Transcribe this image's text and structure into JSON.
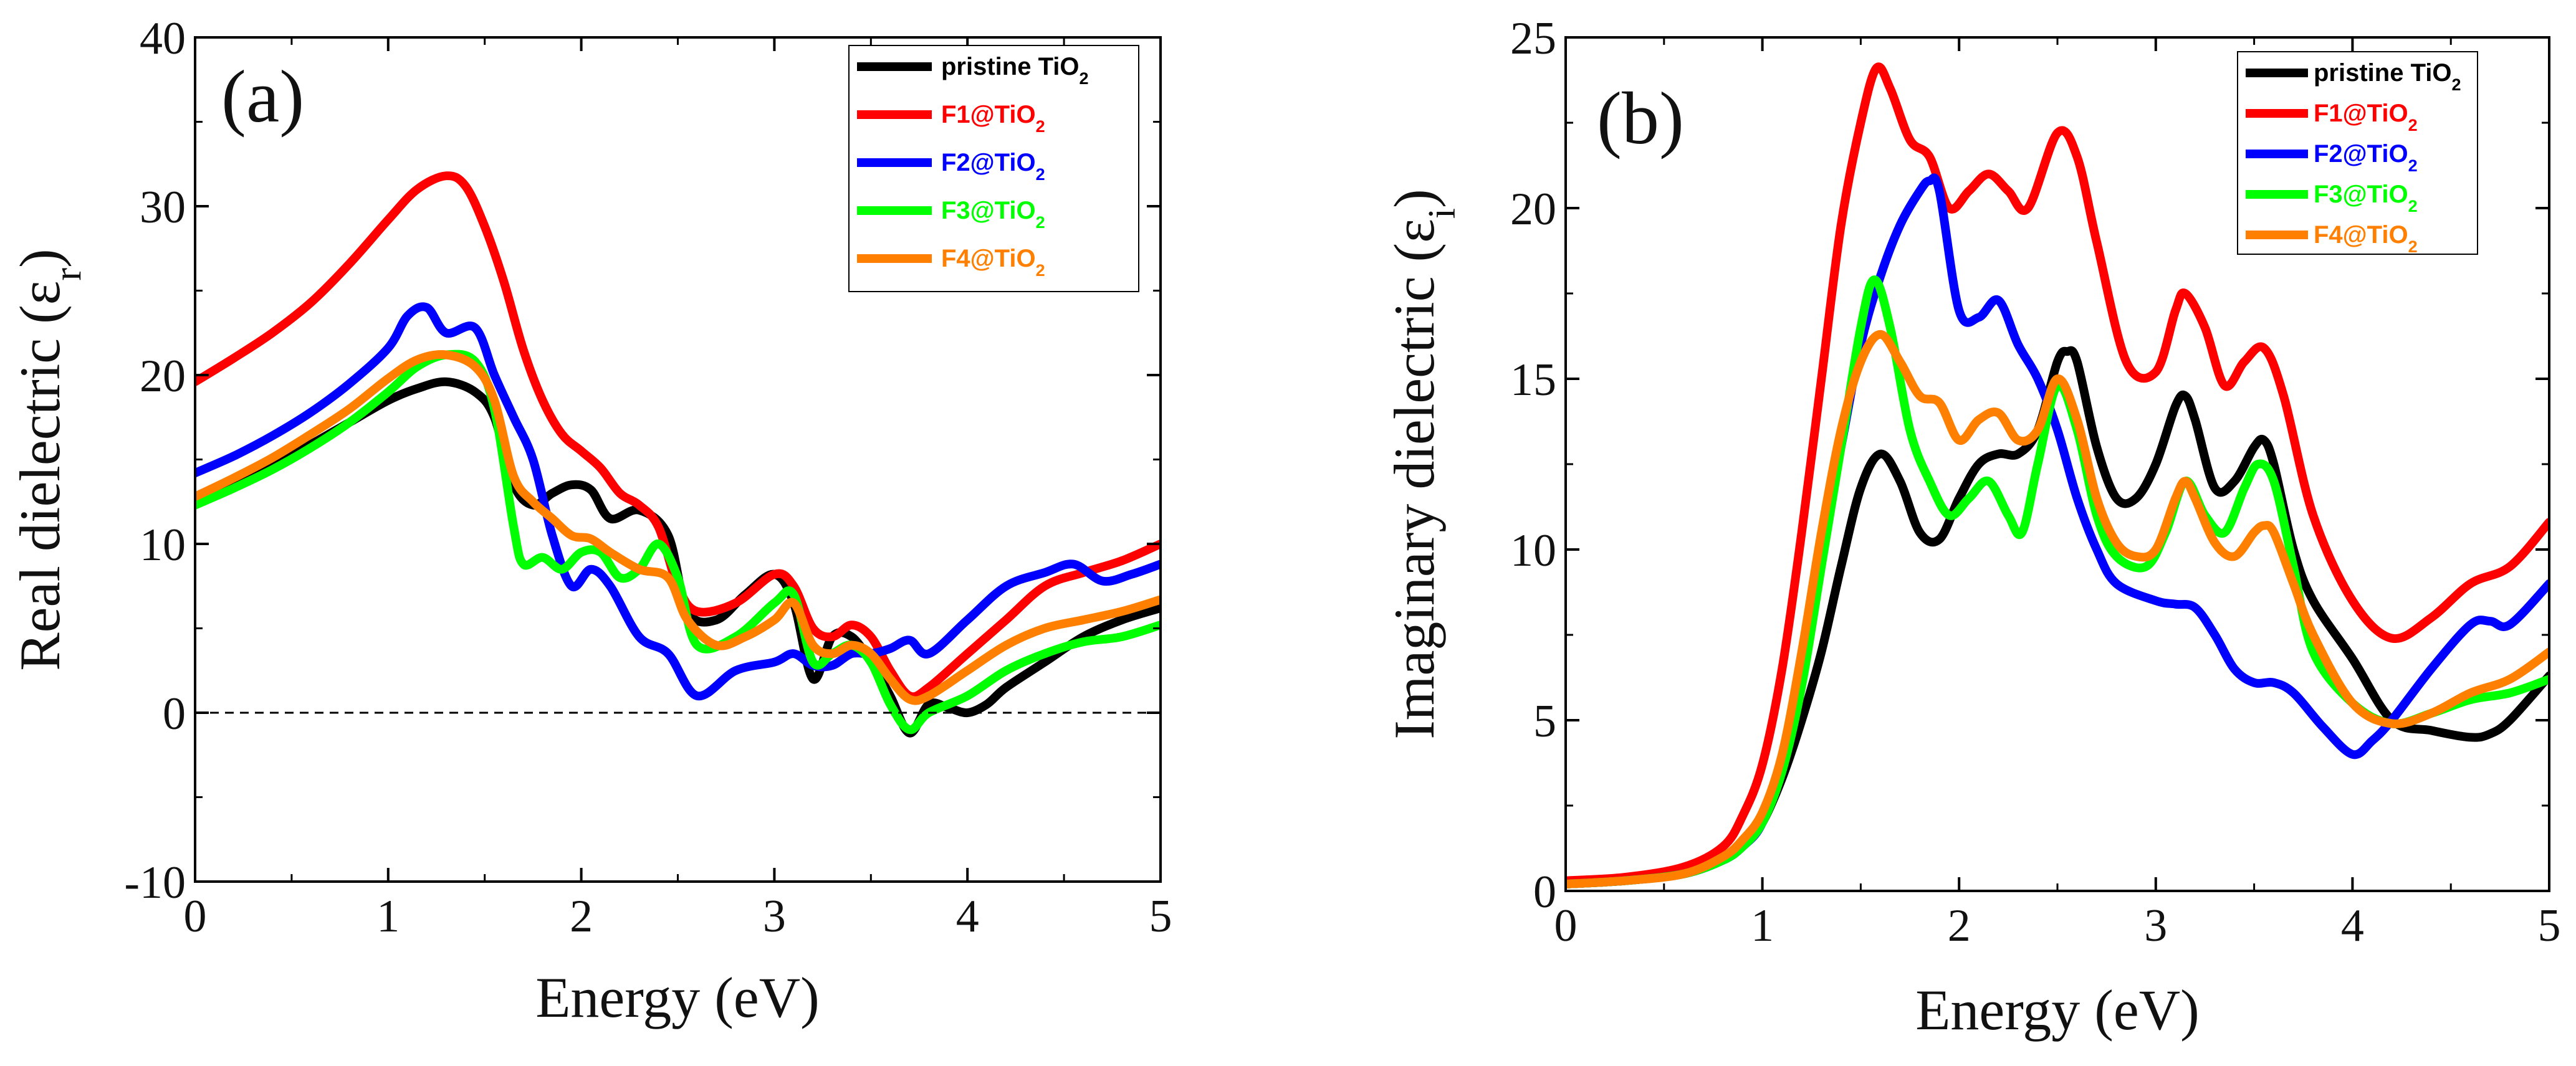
{
  "figure": {
    "panels": [
      {
        "panel_label": "(a)",
        "xlabel": "Energy (eV)",
        "ylabel_main": "Real dielectric (ε",
        "ylabel_sub": "r",
        "ylabel_close": ")",
        "legend_title_suffix": "2"
      },
      {
        "panel_label": "(b)",
        "xlabel": "Energy (eV)",
        "ylabel_main": "Imaginary dielectric (ε",
        "ylabel_sub": "i",
        "ylabel_close": ")",
        "legend_title_suffix": "2"
      }
    ]
  },
  "chart_data": [
    {
      "type": "line",
      "panel_label": "(a)",
      "xlabel": "Energy (eV)",
      "ylabel": "Real dielectric (εr)",
      "xlim": [
        0,
        5
      ],
      "ylim": [
        -10,
        40
      ],
      "xticks": [
        0,
        1,
        2,
        3,
        4,
        5
      ],
      "yticks": [
        -10,
        0,
        10,
        20,
        30,
        40
      ],
      "reference_line": {
        "y": 0,
        "style": "dashed"
      },
      "legend_position": "top-right",
      "series": [
        {
          "name": "pristine TiO",
          "sub": "2",
          "color": "#000000",
          "x": [
            0,
            0.2,
            0.4,
            0.6,
            0.8,
            1.0,
            1.15,
            1.3,
            1.45,
            1.55,
            1.65,
            1.75,
            1.85,
            1.95,
            2.05,
            2.15,
            2.3,
            2.45,
            2.55,
            2.7,
            2.85,
            3.0,
            3.1,
            3.2,
            3.3,
            3.4,
            3.5,
            3.6,
            3.7,
            3.8,
            3.9,
            4.0,
            4.1,
            4.2,
            4.4,
            4.6,
            4.8,
            5.0
          ],
          "y": [
            12.5,
            13.5,
            14.7,
            15.9,
            17.2,
            18.5,
            19.2,
            19.6,
            19.0,
            17.5,
            13.5,
            12.3,
            13.0,
            13.5,
            13.2,
            11.5,
            12.0,
            10.5,
            6.0,
            5.5,
            7.0,
            8.2,
            6.5,
            2.0,
            4.5,
            4.5,
            3.0,
            1.0,
            -1.2,
            0.5,
            0.3,
            0.0,
            0.5,
            1.5,
            3.0,
            4.5,
            5.5,
            6.2
          ]
        },
        {
          "name": "F1@TiO",
          "sub": "2",
          "color": "#ff0000",
          "x": [
            0,
            0.2,
            0.4,
            0.6,
            0.8,
            1.0,
            1.15,
            1.3,
            1.4,
            1.5,
            1.6,
            1.7,
            1.8,
            1.9,
            2.0,
            2.1,
            2.2,
            2.3,
            2.4,
            2.5,
            2.6,
            2.8,
            3.0,
            3.1,
            3.2,
            3.3,
            3.4,
            3.5,
            3.6,
            3.7,
            3.8,
            4.0,
            4.2,
            4.4,
            4.6,
            4.8,
            5.0
          ],
          "y": [
            19.6,
            21.0,
            22.5,
            24.3,
            26.6,
            29.2,
            31.0,
            31.8,
            31.2,
            28.8,
            25.5,
            21.5,
            18.5,
            16.5,
            15.5,
            14.5,
            13.0,
            12.3,
            11.0,
            7.5,
            6.0,
            6.5,
            8.2,
            7.5,
            5.0,
            4.5,
            5.2,
            4.5,
            2.5,
            1.0,
            1.5,
            3.5,
            5.5,
            7.5,
            8.3,
            9.0,
            10.0
          ]
        },
        {
          "name": "F2@TiO",
          "sub": "2",
          "color": "#0000ff",
          "x": [
            0,
            0.2,
            0.4,
            0.6,
            0.8,
            1.0,
            1.1,
            1.2,
            1.3,
            1.45,
            1.55,
            1.65,
            1.75,
            1.85,
            1.95,
            2.05,
            2.15,
            2.3,
            2.45,
            2.6,
            2.8,
            3.0,
            3.1,
            3.2,
            3.3,
            3.4,
            3.5,
            3.6,
            3.7,
            3.8,
            4.0,
            4.2,
            4.4,
            4.55,
            4.7,
            4.85,
            5.0
          ],
          "y": [
            14.2,
            15.2,
            16.4,
            17.8,
            19.5,
            21.6,
            23.5,
            24.0,
            22.5,
            22.8,
            20.0,
            17.5,
            15.0,
            10.5,
            7.5,
            8.5,
            7.5,
            4.5,
            3.5,
            1.0,
            2.5,
            3.0,
            3.5,
            2.8,
            2.8,
            3.5,
            3.5,
            3.8,
            4.3,
            3.5,
            5.5,
            7.5,
            8.3,
            8.8,
            7.8,
            8.2,
            8.8
          ]
        },
        {
          "name": "F3@TiO",
          "sub": "2",
          "color": "#00ff00",
          "x": [
            0,
            0.2,
            0.4,
            0.6,
            0.8,
            1.0,
            1.15,
            1.3,
            1.45,
            1.55,
            1.65,
            1.7,
            1.8,
            1.9,
            2.0,
            2.1,
            2.2,
            2.3,
            2.4,
            2.5,
            2.6,
            2.8,
            3.0,
            3.1,
            3.2,
            3.3,
            3.4,
            3.5,
            3.6,
            3.7,
            3.8,
            4.0,
            4.2,
            4.4,
            4.6,
            4.8,
            5.0
          ],
          "y": [
            12.3,
            13.3,
            14.4,
            15.7,
            17.2,
            19.0,
            20.5,
            21.2,
            20.8,
            18.0,
            11.0,
            8.8,
            9.2,
            8.5,
            9.5,
            9.5,
            8.0,
            8.5,
            10.0,
            8.0,
            4.0,
            4.5,
            6.5,
            7.0,
            3.0,
            3.5,
            4.0,
            3.0,
            0.5,
            -1.0,
            0.0,
            1.0,
            2.5,
            3.5,
            4.2,
            4.5,
            5.2
          ]
        },
        {
          "name": "F4@TiO",
          "sub": "2",
          "color": "#ff8000",
          "x": [
            0,
            0.2,
            0.4,
            0.6,
            0.8,
            1.0,
            1.15,
            1.3,
            1.45,
            1.55,
            1.65,
            1.75,
            1.85,
            1.95,
            2.05,
            2.15,
            2.3,
            2.45,
            2.55,
            2.7,
            2.85,
            3.0,
            3.1,
            3.2,
            3.3,
            3.4,
            3.5,
            3.6,
            3.7,
            3.8,
            4.0,
            4.2,
            4.4,
            4.6,
            4.8,
            5.0
          ],
          "y": [
            12.8,
            13.9,
            15.1,
            16.5,
            18.0,
            19.8,
            20.9,
            21.2,
            20.5,
            18.5,
            14.0,
            12.5,
            11.5,
            10.5,
            10.3,
            9.5,
            8.5,
            8.0,
            5.5,
            4.0,
            4.5,
            5.5,
            6.5,
            4.0,
            3.5,
            4.0,
            3.5,
            2.0,
            0.8,
            1.0,
            2.5,
            4.0,
            5.0,
            5.5,
            6.0,
            6.7
          ]
        }
      ]
    },
    {
      "type": "line",
      "panel_label": "(b)",
      "xlabel": "Energy (eV)",
      "ylabel": "Imaginary dielectric (εi)",
      "xlim": [
        0,
        5
      ],
      "ylim": [
        0,
        25
      ],
      "xticks": [
        0,
        1,
        2,
        3,
        4,
        5
      ],
      "yticks": [
        0,
        5,
        10,
        15,
        20,
        25
      ],
      "legend_position": "top-right",
      "series": [
        {
          "name": "pristine TiO",
          "sub": "2",
          "color": "#000000",
          "x": [
            0,
            0.3,
            0.6,
            0.8,
            0.9,
            1.0,
            1.1,
            1.2,
            1.3,
            1.4,
            1.5,
            1.6,
            1.7,
            1.8,
            1.9,
            2.0,
            2.1,
            2.2,
            2.3,
            2.4,
            2.5,
            2.55,
            2.6,
            2.7,
            2.8,
            2.9,
            3.0,
            3.1,
            3.15,
            3.2,
            3.3,
            3.4,
            3.5,
            3.55,
            3.6,
            3.7,
            3.8,
            4.0,
            4.2,
            4.4,
            4.6,
            4.7,
            4.8,
            5.0
          ],
          "y": [
            0.2,
            0.3,
            0.5,
            0.9,
            1.3,
            2.0,
            3.3,
            5.0,
            7.0,
            9.5,
            11.8,
            12.8,
            12.0,
            10.5,
            10.3,
            11.5,
            12.5,
            12.8,
            12.8,
            13.5,
            15.5,
            15.8,
            15.5,
            13.0,
            11.5,
            11.5,
            12.5,
            14.2,
            14.5,
            13.8,
            11.8,
            12.0,
            13.0,
            13.2,
            12.5,
            10.0,
            8.5,
            6.8,
            5.0,
            4.7,
            4.5,
            4.6,
            5.0,
            6.3
          ]
        },
        {
          "name": "F1@TiO",
          "sub": "2",
          "color": "#ff0000",
          "x": [
            0,
            0.3,
            0.6,
            0.8,
            0.9,
            1.0,
            1.1,
            1.2,
            1.3,
            1.4,
            1.5,
            1.58,
            1.65,
            1.75,
            1.85,
            1.95,
            2.05,
            2.15,
            2.25,
            2.35,
            2.5,
            2.6,
            2.7,
            2.85,
            3.0,
            3.1,
            3.15,
            3.25,
            3.35,
            3.45,
            3.55,
            3.65,
            3.8,
            4.0,
            4.2,
            4.4,
            4.6,
            4.8,
            5.0
          ],
          "y": [
            0.3,
            0.4,
            0.7,
            1.3,
            2.2,
            3.7,
            6.5,
            10.5,
            15.0,
            19.5,
            22.5,
            24.1,
            23.5,
            22.0,
            21.5,
            20.0,
            20.5,
            21.0,
            20.5,
            20.0,
            22.2,
            21.5,
            19.0,
            15.5,
            15.2,
            17.0,
            17.5,
            16.5,
            14.8,
            15.5,
            15.9,
            14.5,
            11.0,
            8.5,
            7.4,
            8.0,
            9.0,
            9.5,
            10.8
          ]
        },
        {
          "name": "F2@TiO",
          "sub": "2",
          "color": "#0000ff",
          "x": [
            0,
            0.3,
            0.6,
            0.8,
            0.9,
            1.0,
            1.1,
            1.2,
            1.3,
            1.4,
            1.5,
            1.6,
            1.7,
            1.8,
            1.85,
            1.9,
            2.0,
            2.1,
            2.2,
            2.3,
            2.4,
            2.5,
            2.6,
            2.7,
            2.8,
            3.0,
            3.1,
            3.2,
            3.3,
            3.4,
            3.5,
            3.6,
            3.7,
            3.85,
            4.0,
            4.1,
            4.2,
            4.4,
            4.6,
            4.7,
            4.8,
            5.0
          ],
          "y": [
            0.2,
            0.3,
            0.5,
            0.9,
            1.3,
            2.0,
            3.8,
            6.5,
            10.0,
            13.0,
            16.0,
            18.0,
            19.5,
            20.5,
            20.8,
            20.5,
            17.0,
            16.8,
            17.3,
            16.0,
            15.0,
            13.5,
            11.5,
            10.0,
            9.0,
            8.5,
            8.4,
            8.3,
            7.5,
            6.5,
            6.1,
            6.1,
            5.8,
            4.8,
            4.0,
            4.4,
            5.0,
            6.5,
            7.8,
            7.9,
            7.8,
            9.0
          ]
        },
        {
          "name": "F3@TiO",
          "sub": "2",
          "color": "#00ff00",
          "x": [
            0,
            0.3,
            0.6,
            0.8,
            0.9,
            1.0,
            1.1,
            1.2,
            1.3,
            1.4,
            1.5,
            1.57,
            1.65,
            1.75,
            1.85,
            1.95,
            2.05,
            2.15,
            2.25,
            2.32,
            2.4,
            2.5,
            2.6,
            2.7,
            2.8,
            2.95,
            3.05,
            3.15,
            3.25,
            3.35,
            3.45,
            3.52,
            3.6,
            3.7,
            3.8,
            4.0,
            4.2,
            4.4,
            4.6,
            4.8,
            5.0
          ],
          "y": [
            0.2,
            0.3,
            0.5,
            0.9,
            1.3,
            2.0,
            3.5,
            6.0,
            9.5,
            13.0,
            16.5,
            17.9,
            16.5,
            13.5,
            12.0,
            11.0,
            11.5,
            12.0,
            11.0,
            10.5,
            12.5,
            14.8,
            13.5,
            11.0,
            9.8,
            9.5,
            10.5,
            12.0,
            11.0,
            10.5,
            11.8,
            12.5,
            12.0,
            9.5,
            7.0,
            5.5,
            4.9,
            5.2,
            5.6,
            5.8,
            6.2
          ]
        },
        {
          "name": "F4@TiO",
          "sub": "2",
          "color": "#ff8000",
          "x": [
            0,
            0.3,
            0.6,
            0.8,
            0.9,
            1.0,
            1.1,
            1.2,
            1.3,
            1.4,
            1.5,
            1.6,
            1.7,
            1.8,
            1.9,
            2.0,
            2.1,
            2.2,
            2.3,
            2.4,
            2.5,
            2.6,
            2.7,
            2.8,
            2.9,
            3.0,
            3.1,
            3.15,
            3.2,
            3.3,
            3.4,
            3.5,
            3.55,
            3.6,
            3.7,
            3.8,
            4.0,
            4.2,
            4.4,
            4.6,
            4.8,
            5.0
          ],
          "y": [
            0.2,
            0.3,
            0.5,
            1.0,
            1.5,
            2.3,
            4.0,
            7.0,
            10.5,
            13.5,
            15.5,
            16.3,
            15.5,
            14.5,
            14.3,
            13.2,
            13.8,
            14.0,
            13.2,
            13.5,
            15.0,
            13.8,
            11.5,
            10.2,
            9.8,
            10.0,
            11.5,
            12.0,
            11.5,
            10.2,
            9.8,
            10.5,
            10.7,
            10.5,
            9.0,
            7.5,
            5.5,
            4.9,
            5.2,
            5.8,
            6.2,
            7.0
          ]
        }
      ]
    }
  ]
}
